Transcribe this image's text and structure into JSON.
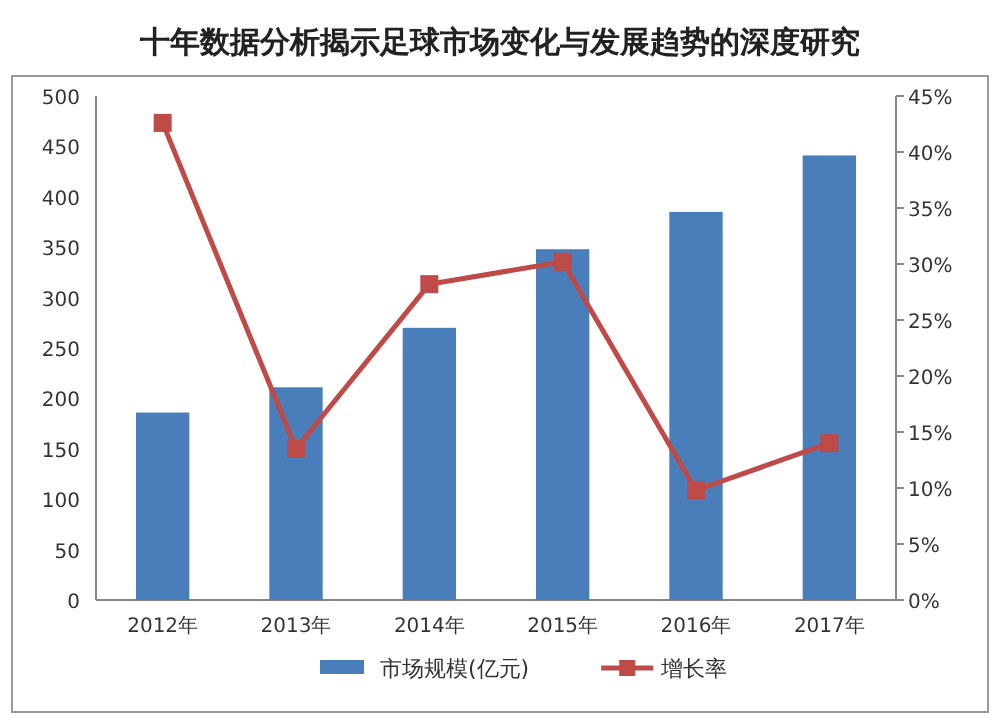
{
  "chart_data": {
    "type": "bar",
    "title": "十年数据分析揭示足球市场变化与发展趋势的深度研究",
    "categories": [
      "2012年",
      "2013年",
      "2014年",
      "2015年",
      "2016年",
      "2017年"
    ],
    "series": [
      {
        "name": "市场规模(亿元)",
        "color": "#4a7ebb",
        "values": [
          186,
          211,
          270,
          348,
          385,
          441
        ]
      },
      {
        "name": "增长率",
        "type": "line",
        "axis": "y2",
        "color": "#be4b48",
        "marker": "square",
        "values": [
          42.6,
          13.5,
          28.2,
          30.2,
          9.8,
          14
        ]
      }
    ],
    "ylim": [
      0,
      500
    ],
    "yticks": [
      0,
      50,
      100,
      150,
      200,
      250,
      300,
      350,
      400,
      450,
      500
    ],
    "y2lim": [
      0,
      45
    ],
    "y2ticks": [
      {
        "value": 0,
        "label": "0%"
      },
      {
        "value": 5,
        "label": "5%"
      },
      {
        "value": 10,
        "label": "10%"
      },
      {
        "value": 15,
        "label": "15%"
      },
      {
        "value": 20,
        "label": "20%"
      },
      {
        "value": 25,
        "label": "25%"
      },
      {
        "value": 30,
        "label": "30%"
      },
      {
        "value": 35,
        "label": "35%"
      },
      {
        "value": 40,
        "label": "40%"
      },
      {
        "value": 45,
        "label": "45%"
      }
    ],
    "legend": "bottom",
    "grid": false
  }
}
